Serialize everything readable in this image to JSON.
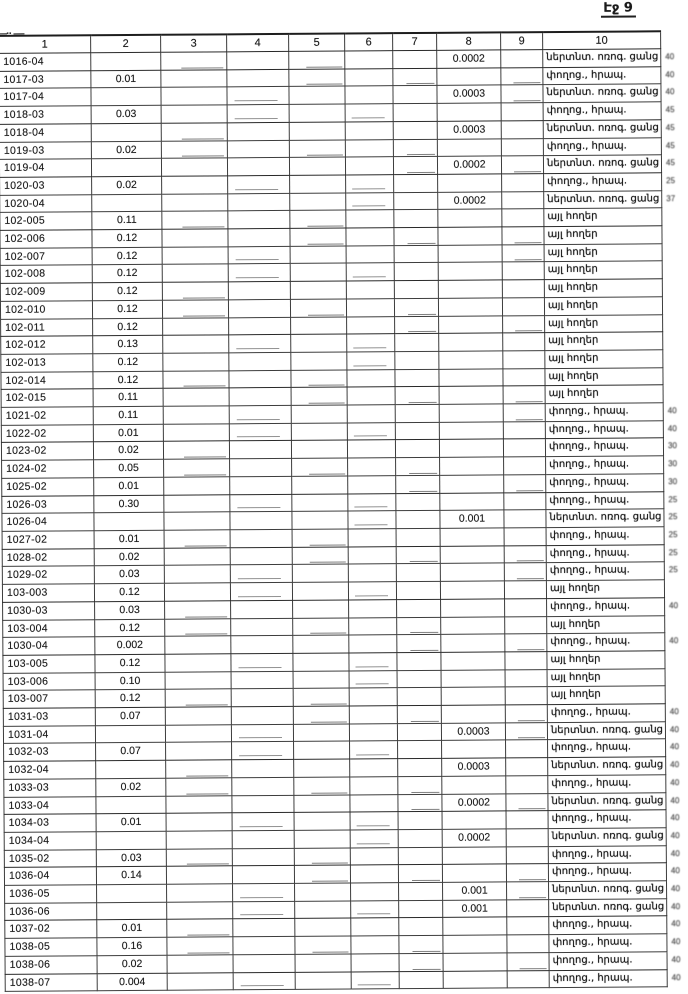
{
  "page_label": "Էջ 9",
  "scan_artifacts": {
    "top_left_dashes": "—·· —"
  },
  "categories": {
    "irrigation": "ներտնտ. ոռոգ. ցանց",
    "streets": "փողոց., հրապ.",
    "other": "այլ հողեր"
  },
  "table": {
    "headers": [
      "1",
      "2",
      "3",
      "4",
      "5",
      "6",
      "7",
      "8",
      "9",
      "10"
    ],
    "rows": [
      {
        "code": "1016-04",
        "area": "",
        "amount": "0.0002",
        "category": "ներտնտ. ոռոգ. ցանց",
        "note": "40"
      },
      {
        "code": "1017-03",
        "area": "0.01",
        "amount": "",
        "category": "փողոց., հրապ.",
        "note": "40"
      },
      {
        "code": "1017-04",
        "area": "",
        "amount": "0.0003",
        "category": "ներտնտ. ոռոգ. ցանց",
        "note": "40"
      },
      {
        "code": "1018-03",
        "area": "0.03",
        "amount": "",
        "category": "փողոց., հրապ.",
        "note": "45"
      },
      {
        "code": "1018-04",
        "area": "",
        "amount": "0.0003",
        "category": "ներտնտ. ոռոգ. ցանց",
        "note": "45"
      },
      {
        "code": "1019-03",
        "area": "0.02",
        "amount": "",
        "category": "փողոց., հրապ.",
        "note": "45"
      },
      {
        "code": "1019-04",
        "area": "",
        "amount": "0.0002",
        "category": "ներտնտ. ոռոգ. ցանց",
        "note": "45"
      },
      {
        "code": "1020-03",
        "area": "0.02",
        "amount": "",
        "category": "փողոց., հրապ.",
        "note": "25"
      },
      {
        "code": "1020-04",
        "area": "",
        "amount": "0.0002",
        "category": "ներտնտ. ոռոգ. ցանց",
        "note": "37"
      },
      {
        "code": "102-005",
        "area": "0.11",
        "amount": "",
        "category": "այլ հողեր",
        "note": ""
      },
      {
        "code": "102-006",
        "area": "0.12",
        "amount": "",
        "category": "այլ հողեր",
        "note": ""
      },
      {
        "code": "102-007",
        "area": "0.12",
        "amount": "",
        "category": "այլ հողեր",
        "note": ""
      },
      {
        "code": "102-008",
        "area": "0.12",
        "amount": "",
        "category": "այլ հողեր",
        "note": ""
      },
      {
        "code": "102-009",
        "area": "0.12",
        "amount": "",
        "category": "այլ հողեր",
        "note": ""
      },
      {
        "code": "102-010",
        "area": "0.12",
        "amount": "",
        "category": "այլ հողեր",
        "note": ""
      },
      {
        "code": "102-011",
        "area": "0.12",
        "amount": "",
        "category": "այլ հողեր",
        "note": ""
      },
      {
        "code": "102-012",
        "area": "0.13",
        "amount": "",
        "category": "այլ հողեր",
        "note": ""
      },
      {
        "code": "102-013",
        "area": "0.12",
        "amount": "",
        "category": "այլ հողեր",
        "note": ""
      },
      {
        "code": "102-014",
        "area": "0.12",
        "amount": "",
        "category": "այլ հողեր",
        "note": ""
      },
      {
        "code": "102-015",
        "area": "0.11",
        "amount": "",
        "category": "այլ հողեր",
        "note": ""
      },
      {
        "code": "1021-02",
        "area": "0.11",
        "amount": "",
        "category": "փողոց., հրապ.",
        "note": "40"
      },
      {
        "code": "1022-02",
        "area": "0.01",
        "amount": "",
        "category": "փողոց., հրապ.",
        "note": "40"
      },
      {
        "code": "1023-02",
        "area": "0.02",
        "amount": "",
        "category": "փողոց., հրապ.",
        "note": "30"
      },
      {
        "code": "1024-02",
        "area": "0.05",
        "amount": "",
        "category": "փողոց., հրապ.",
        "note": "30"
      },
      {
        "code": "1025-02",
        "area": "0.01",
        "amount": "",
        "category": "փողոց., հրապ.",
        "note": "30"
      },
      {
        "code": "1026-03",
        "area": "0.30",
        "amount": "",
        "category": "փողոց., հրապ.",
        "note": "25"
      },
      {
        "code": "1026-04",
        "area": "",
        "amount": "0.001",
        "category": "ներտնտ. ոռոգ. ցանց",
        "note": "25"
      },
      {
        "code": "1027-02",
        "area": "0.01",
        "amount": "",
        "category": "փողոց., հրապ.",
        "note": "25"
      },
      {
        "code": "1028-02",
        "area": "0.02",
        "amount": "",
        "category": "փողոց., հրապ.",
        "note": "25"
      },
      {
        "code": "1029-02",
        "area": "0.03",
        "amount": "",
        "category": "փողոց., հրապ.",
        "note": "25"
      },
      {
        "code": "103-003",
        "area": "0.12",
        "amount": "",
        "category": "այլ հողեր",
        "note": ""
      },
      {
        "code": "1030-03",
        "area": "0.03",
        "amount": "",
        "category": "փողոց., հրապ.",
        "note": "40"
      },
      {
        "code": "103-004",
        "area": "0.12",
        "amount": "",
        "category": "այլ հողեր",
        "note": ""
      },
      {
        "code": "1030-04",
        "area": "0.002",
        "amount": "",
        "category": "փողոց., հրապ.",
        "note": "40"
      },
      {
        "code": "103-005",
        "area": "0.12",
        "amount": "",
        "category": "այլ հողեր",
        "note": ""
      },
      {
        "code": "103-006",
        "area": "0.10",
        "amount": "",
        "category": "այլ հողեր",
        "note": ""
      },
      {
        "code": "103-007",
        "area": "0.12",
        "amount": "",
        "category": "այլ հողեր",
        "note": ""
      },
      {
        "code": "1031-03",
        "area": "0.07",
        "amount": "",
        "category": "փողոց., հրապ.",
        "note": "40"
      },
      {
        "code": "1031-04",
        "area": "",
        "amount": "0.0003",
        "category": "ներտնտ. ոռոգ. ցանց",
        "note": "40"
      },
      {
        "code": "1032-03",
        "area": "0.07",
        "amount": "",
        "category": "փողոց., հրապ.",
        "note": "40"
      },
      {
        "code": "1032-04",
        "area": "",
        "amount": "0.0003",
        "category": "ներտնտ. ոռոգ. ցանց",
        "note": "40"
      },
      {
        "code": "1033-03",
        "area": "0.02",
        "amount": "",
        "category": "փողոց., հրապ.",
        "note": "40"
      },
      {
        "code": "1033-04",
        "area": "",
        "amount": "0.0002",
        "category": "ներտնտ. ոռոգ. ցանց",
        "note": "40"
      },
      {
        "code": "1034-03",
        "area": "0.01",
        "amount": "",
        "category": "փողոց., հրապ.",
        "note": "40"
      },
      {
        "code": "1034-04",
        "area": "",
        "amount": "0.0002",
        "category": "ներտնտ. ոռոգ. ցանց",
        "note": "40"
      },
      {
        "code": "1035-02",
        "area": "0.03",
        "amount": "",
        "category": "փողոց., հրապ.",
        "note": "40"
      },
      {
        "code": "1036-04",
        "area": "0.14",
        "amount": "",
        "category": "փողոց., հրապ.",
        "note": "40"
      },
      {
        "code": "1036-05",
        "area": "",
        "amount": "0.001",
        "category": "ներտնտ. ոռոգ. ցանց",
        "note": "40"
      },
      {
        "code": "1036-06",
        "area": "",
        "amount": "0.001",
        "category": "ներտնտ. ոռոգ. ցանց",
        "note": "40"
      },
      {
        "code": "1037-02",
        "area": "0.01",
        "amount": "",
        "category": "փողոց., հրապ.",
        "note": "40"
      },
      {
        "code": "1038-05",
        "area": "0.16",
        "amount": "",
        "category": "փողոց., հրապ.",
        "note": "40"
      },
      {
        "code": "1038-06",
        "area": "0.02",
        "amount": "",
        "category": "փողոց., հրապ.",
        "note": "40"
      },
      {
        "code": "1038-07",
        "area": "0.004",
        "amount": "",
        "category": "փողոց., հրապ.",
        "note": "40"
      }
    ]
  }
}
